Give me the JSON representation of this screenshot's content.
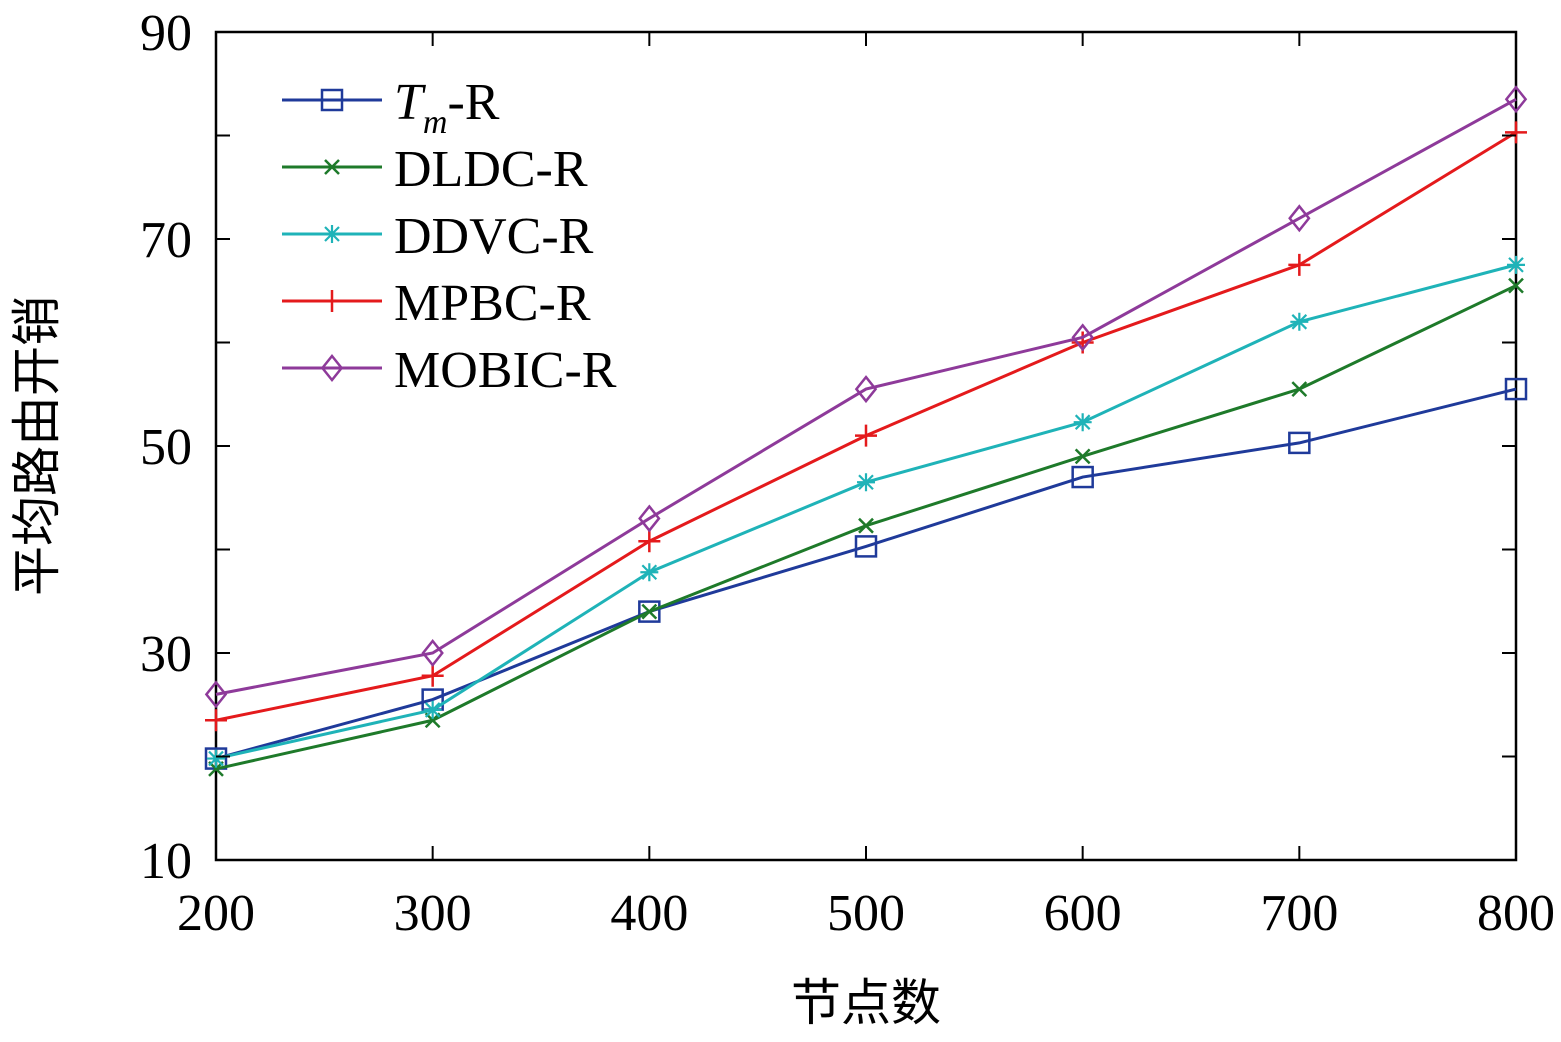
{
  "chart_data": {
    "type": "line",
    "title": "",
    "xlabel": "节点数",
    "ylabel": "平均路由开销",
    "x": [
      200,
      300,
      400,
      500,
      600,
      700,
      800
    ],
    "xlim": [
      200,
      800
    ],
    "ylim": [
      10,
      90
    ],
    "xticks": [
      "200",
      "300",
      "400",
      "500",
      "600",
      "700",
      "800"
    ],
    "yticks": [
      "10",
      "30",
      "50",
      "70",
      "90"
    ],
    "ytick_values": [
      10,
      30,
      50,
      70,
      90
    ],
    "yminor_tick_values": [
      20,
      40,
      60,
      80
    ],
    "grid": false,
    "legend_position": "top-left",
    "series": [
      {
        "id": "tm",
        "name_main": "T",
        "name_sub": "m",
        "name_rest": "-R",
        "color": "#1f3a9a",
        "marker": "square",
        "values": [
          19.8,
          25.5,
          34.0,
          40.3,
          47.0,
          50.3,
          55.5
        ]
      },
      {
        "id": "dldc",
        "name": "DLDC-R",
        "color": "#1e7a2a",
        "marker": "x",
        "values": [
          18.8,
          23.5,
          34.0,
          42.3,
          49.0,
          55.5,
          65.5
        ]
      },
      {
        "id": "ddvc",
        "name": "DDVC-R",
        "color": "#1fb3b8",
        "marker": "asterisk",
        "values": [
          19.8,
          24.5,
          37.8,
          46.5,
          52.3,
          62.0,
          67.5
        ]
      },
      {
        "id": "mpbc",
        "name": "MPBC-R",
        "color": "#e41a1c",
        "marker": "plus",
        "values": [
          23.5,
          27.8,
          40.8,
          51.0,
          60.0,
          67.5,
          80.3
        ]
      },
      {
        "id": "mobic",
        "name": "MOBIC-R",
        "color": "#8e3a9a",
        "marker": "diamond",
        "values": [
          26.0,
          30.0,
          43.0,
          55.5,
          60.5,
          72.0,
          83.5
        ]
      }
    ]
  }
}
